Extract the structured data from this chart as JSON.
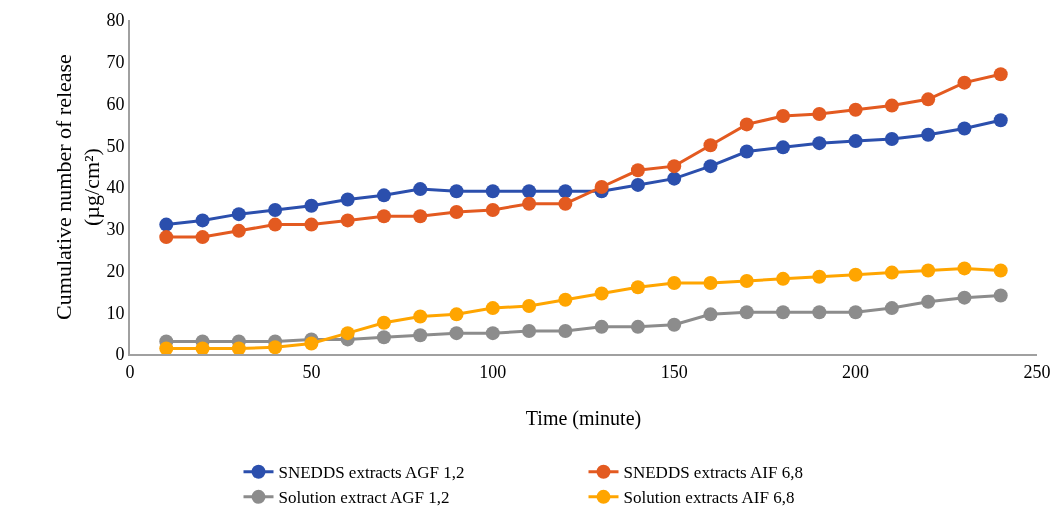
{
  "chart_data": {
    "type": "line",
    "xlabel": "Time (minute)",
    "ylabel": "Cumulative number of release\n(µg/cm²)",
    "x": [
      10,
      20,
      30,
      40,
      50,
      60,
      70,
      80,
      90,
      100,
      110,
      120,
      130,
      140,
      150,
      160,
      170,
      180,
      190,
      200,
      210,
      220,
      230,
      240
    ],
    "xlim": [
      0,
      250
    ],
    "xticks": [
      0,
      50,
      100,
      150,
      200,
      250
    ],
    "ylim": [
      0,
      80
    ],
    "yticks": [
      0,
      10,
      20,
      30,
      40,
      50,
      60,
      70,
      80
    ],
    "grid": false,
    "legend": "bottom",
    "marker": "circle",
    "line_style": "solid",
    "series": [
      {
        "name": "SNEDDS extracts AGF 1,2",
        "color": "#2b4fad",
        "values": [
          31,
          32,
          33.5,
          34.5,
          35.5,
          37,
          38,
          39.5,
          39,
          39,
          39,
          39,
          39,
          40.5,
          42,
          45,
          48.5,
          49.5,
          50.5,
          51,
          51.5,
          52.5,
          54,
          56
        ]
      },
      {
        "name": "SNEDDS extracts AIF 6,8",
        "color": "#e35a20",
        "values": [
          28,
          28,
          29.5,
          31,
          31,
          32,
          33,
          33,
          34,
          34.5,
          36,
          36,
          40,
          44,
          45,
          50,
          55,
          57,
          57.5,
          58.5,
          59.5,
          61,
          65,
          67
        ]
      },
      {
        "name": "Solution extract AGF 1,2",
        "color": "#8c8c8c",
        "values": [
          3,
          3,
          3,
          3,
          3.5,
          3.5,
          4,
          4.5,
          5,
          5,
          5.5,
          5.5,
          6.5,
          6.5,
          7,
          9.5,
          10,
          10,
          10,
          10,
          11,
          12.5,
          13.5,
          14
        ]
      },
      {
        "name": "Solution extracts AIF 6,8",
        "color": "#ffa500",
        "values": [
          1.3,
          1.3,
          1.3,
          1.6,
          2.5,
          5,
          7.5,
          9,
          9.5,
          11,
          11.5,
          13,
          14.5,
          16,
          17,
          17,
          17.5,
          18,
          18.5,
          19,
          19.5,
          20,
          20.5,
          20
        ]
      }
    ]
  }
}
